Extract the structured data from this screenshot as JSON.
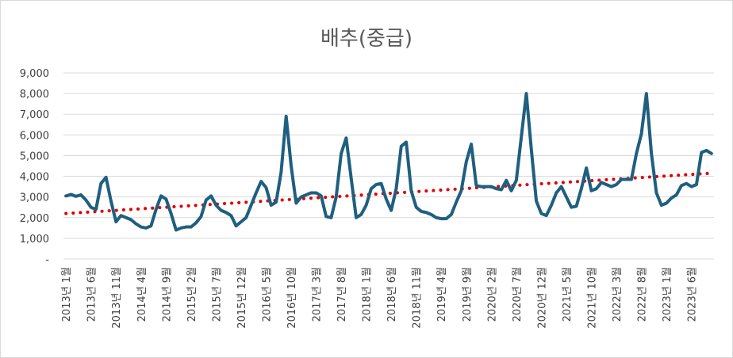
{
  "chart_data": {
    "type": "line",
    "title": "배추(중급)",
    "xlabel": "",
    "ylabel": "",
    "ylim": [
      0,
      9000
    ],
    "y_ticks": [
      0,
      1000,
      2000,
      3000,
      4000,
      5000,
      6000,
      7000,
      8000,
      9000
    ],
    "y_tick_labels": [
      "-",
      "1,000",
      "2,000",
      "3,000",
      "4,000",
      "5,000",
      "6,000",
      "7,000",
      "8,000",
      "9,000"
    ],
    "x_tick_labels": [
      "2013년 1월",
      "2013년 6월",
      "2013년 11월",
      "2014년 4월",
      "2014년 9월",
      "2015년 2월",
      "2015년 7월",
      "2015년 12월",
      "2016년 5월",
      "2016년 10월",
      "2017년 3월",
      "2017년 8월",
      "2018년 1월",
      "2018년 6월",
      "2018년 11월",
      "2019년 4월",
      "2019년 9월",
      "2020년 2월",
      "2020년 7월",
      "2020년 12월",
      "2021년 5월",
      "2021년 10월",
      "2022년 3월",
      "2022년 8월",
      "2023년 1월",
      "2023년 6월"
    ],
    "grid": true,
    "colors": {
      "series": "#1f5f7f",
      "trend": "#e00000",
      "grid": "#d9d9d9"
    },
    "series": [
      {
        "values": [
          3050,
          3120,
          3030,
          3100,
          2850,
          2500,
          2400,
          3650,
          3950,
          2800,
          1800,
          2100,
          2000,
          1900,
          1700,
          1550,
          1500,
          1600,
          2400,
          3050,
          2900,
          2200,
          1400,
          1500,
          1550,
          1550,
          1750,
          2050,
          2850,
          3050,
          2600,
          2350,
          2250,
          2100,
          1600,
          1800,
          2000,
          2600,
          3200,
          3750,
          3450,
          2600,
          2750,
          4200,
          6900,
          4500,
          2700,
          3000,
          3100,
          3200,
          3200,
          3050,
          2050,
          2000,
          3000,
          5100,
          5850,
          3900,
          2000,
          2150,
          2600,
          3400,
          3600,
          3650,
          2900,
          2350,
          3400,
          5450,
          5650,
          3300,
          2500,
          2300,
          2250,
          2150,
          2000,
          1950,
          1950,
          2150,
          2750,
          3300,
          4700,
          5550,
          3550,
          3500,
          3500,
          3500,
          3400,
          3350,
          3800,
          3300,
          3800,
          5900,
          8000,
          5300,
          2800,
          2200,
          2100,
          2600,
          3200,
          3500,
          3000,
          2500,
          2550,
          3400,
          4400,
          3300,
          3400,
          3700,
          3600,
          3500,
          3600,
          3850,
          3850,
          3850,
          5100,
          6050,
          8000,
          5100,
          3200,
          2600,
          2700,
          2950,
          3100,
          3550,
          3650,
          3500,
          3600,
          5150,
          5250,
          5100
        ]
      }
    ],
    "trendline": {
      "style": "dotted",
      "start": 2200,
      "end": 4150
    }
  }
}
